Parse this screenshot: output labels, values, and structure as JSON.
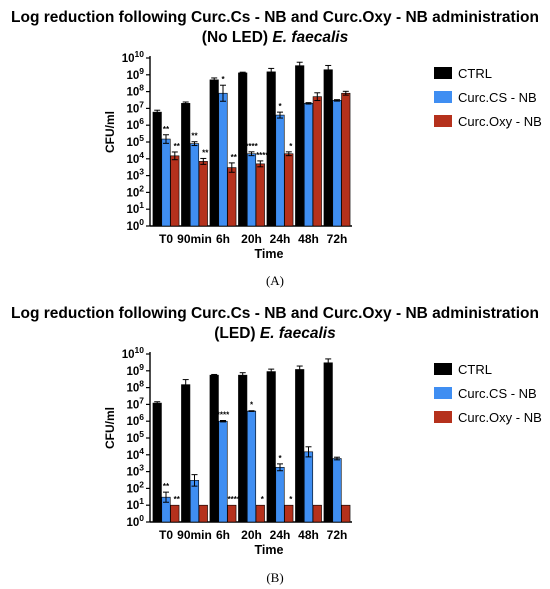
{
  "panels": [
    {
      "title_line1": "Log reduction following Curc.Cs - NB and Curc.Oxy - NB administration",
      "title_line2_plain": "(No LED) ",
      "title_line2_italic": "E. faecalis",
      "caption": "(A)"
    },
    {
      "title_line1": "Log reduction following Curc.Cs - NB and Curc.Oxy - NB administration",
      "title_line2_plain": "(LED) ",
      "title_line2_italic": "E. faecalis",
      "caption": "(B)"
    }
  ],
  "colors": {
    "ctrl": "#000000",
    "cs": "#3f8ef2",
    "oxy": "#b5311c"
  },
  "chart_data": [
    {
      "type": "bar",
      "ylabel": "CFU/ml",
      "xlabel": "Time",
      "yscale": "log",
      "ylim": [
        1,
        10000000000
      ],
      "ytick_exponents": [
        0,
        1,
        2,
        3,
        4,
        5,
        6,
        7,
        8,
        9,
        10
      ],
      "categories": [
        "T0",
        "90min",
        "6h",
        "20h",
        "24h",
        "48h",
        "72h"
      ],
      "legend_position": "right",
      "series": [
        {
          "name": "CTRL",
          "values": [
            6000000,
            20000000,
            500000000,
            1300000000,
            1500000000,
            3500000000,
            2000000000
          ],
          "err_factor": [
            1.3,
            1.2,
            1.3,
            1.1,
            1.6,
            1.6,
            1.8
          ],
          "marks": [
            "",
            "",
            "",
            "",
            "",
            "",
            ""
          ]
        },
        {
          "name": "Curc.CS - NB",
          "values": [
            150000,
            80000,
            80000000,
            20000,
            4000000,
            20000000,
            30000000
          ],
          "err_factor": [
            1.8,
            1.3,
            3.0,
            1.3,
            1.5,
            1.1,
            1.1
          ],
          "marks": [
            "**",
            "**",
            "*",
            "****",
            "*",
            "",
            ""
          ]
        },
        {
          "name": "Curc.Oxy - NB",
          "values": [
            15000,
            7000,
            3000,
            5000,
            20000,
            50000000,
            80000000
          ],
          "err_factor": [
            1.7,
            1.5,
            1.9,
            1.5,
            1.3,
            1.7,
            1.3
          ],
          "marks": [
            "**",
            "**",
            "**",
            "****",
            "*",
            "",
            ""
          ]
        }
      ]
    },
    {
      "type": "bar",
      "ylabel": "CFU/ml",
      "xlabel": "Time",
      "yscale": "log",
      "ylim": [
        1,
        10000000000
      ],
      "ytick_exponents": [
        0,
        1,
        2,
        3,
        4,
        5,
        6,
        7,
        8,
        9,
        10
      ],
      "categories": [
        "T0",
        "90min",
        "6h",
        "20h",
        "24h",
        "48h",
        "72h"
      ],
      "legend_position": "right",
      "series": [
        {
          "name": "CTRL",
          "values": [
            12000000,
            150000000,
            550000000,
            550000000,
            900000000,
            1200000000,
            3000000000
          ],
          "err_factor": [
            1.2,
            2.0,
            1.1,
            1.4,
            1.4,
            1.6,
            1.7
          ],
          "marks": [
            "",
            "",
            "",
            "",
            "",
            "",
            ""
          ]
        },
        {
          "name": "Curc.CS - NB",
          "values": [
            30,
            300,
            1000000,
            4000000,
            1800,
            15000,
            6000
          ],
          "err_factor": [
            2.0,
            2.2,
            1.1,
            1.05,
            1.6,
            2.0,
            1.2
          ],
          "marks": [
            "**",
            "",
            "****",
            "*",
            "*",
            "",
            ""
          ]
        },
        {
          "name": "Curc.Oxy - NB",
          "values": [
            10,
            10,
            10,
            10,
            10,
            10,
            10
          ],
          "err_factor": [
            1,
            1,
            1,
            1,
            1,
            1,
            1
          ],
          "marks": [
            "**",
            "",
            "****",
            "*",
            "*",
            "",
            ""
          ]
        }
      ]
    }
  ]
}
